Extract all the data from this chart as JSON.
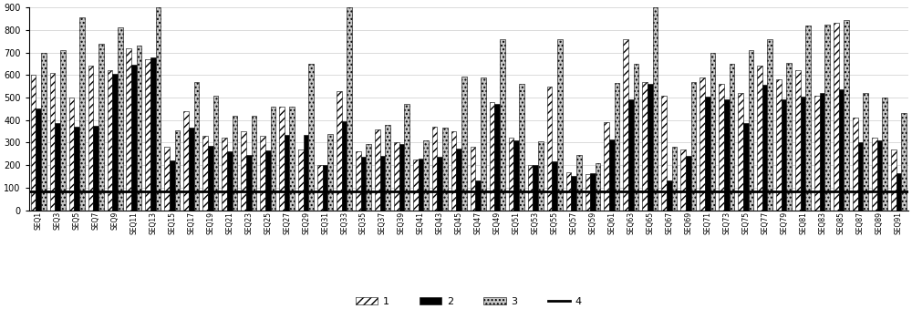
{
  "categories": [
    "SEQ1",
    "SEQ3",
    "SEQ5",
    "SEQ7",
    "SEQ9",
    "SEQ11",
    "SEQ13",
    "SEQ15",
    "SEQ17",
    "SEQ19",
    "SEQ21",
    "SEQ23",
    "SEQ25",
    "SEQ27",
    "SEQ29",
    "SEQ31",
    "SEQ33",
    "SEQ35",
    "SEQ37",
    "SEQ39",
    "SEQ41",
    "SEQ43",
    "SEQ45",
    "SEQ47",
    "SEQ49",
    "SEQ51",
    "SEQ53",
    "SEQ55",
    "SEQ57",
    "SEQ59",
    "SEQ61",
    "SEQ63",
    "SEQ65",
    "SEQ67",
    "SEQ69",
    "SEQ71",
    "SEQ73",
    "SEQ75",
    "SEQ77",
    "SEQ79",
    "SEQ81",
    "SEQ83",
    "SEQ85",
    "SEQ87",
    "SEQ89",
    "SEQ91"
  ],
  "series1": [
    600,
    610,
    500,
    640,
    620,
    720,
    670,
    280,
    440,
    330,
    320,
    350,
    330,
    460,
    270,
    200,
    530,
    260,
    360,
    300,
    225,
    370,
    350,
    280,
    480,
    320,
    200,
    550,
    170,
    160,
    390,
    760,
    570,
    510,
    270,
    590,
    560,
    520,
    640,
    580,
    620,
    510,
    830,
    410,
    320,
    270
  ],
  "series2": [
    450,
    385,
    370,
    375,
    605,
    645,
    680,
    220,
    365,
    285,
    260,
    245,
    265,
    335,
    335,
    200,
    395,
    235,
    240,
    295,
    230,
    235,
    275,
    130,
    470,
    310,
    200,
    215,
    150,
    165,
    315,
    490,
    560,
    130,
    240,
    505,
    490,
    385,
    555,
    490,
    505,
    520,
    535,
    300,
    310,
    165
  ],
  "series3": [
    700,
    710,
    855,
    740,
    810,
    730,
    900,
    355,
    570,
    510,
    420,
    420,
    460,
    460,
    650,
    340,
    900,
    295,
    380,
    470,
    310,
    365,
    595,
    590,
    760,
    560,
    305,
    760,
    245,
    210,
    565,
    650,
    900,
    280,
    570,
    700,
    650,
    710,
    760,
    655,
    820,
    825,
    845,
    520,
    500,
    430
  ],
  "threshold": 85,
  "ylim": [
    0,
    900
  ],
  "yticks": [
    0,
    100,
    200,
    300,
    400,
    500,
    600,
    700,
    800,
    900
  ],
  "legend_labels": [
    "1",
    "2",
    "3",
    "4"
  ],
  "threshold_linewidth": 2.0,
  "bar_width": 0.27
}
